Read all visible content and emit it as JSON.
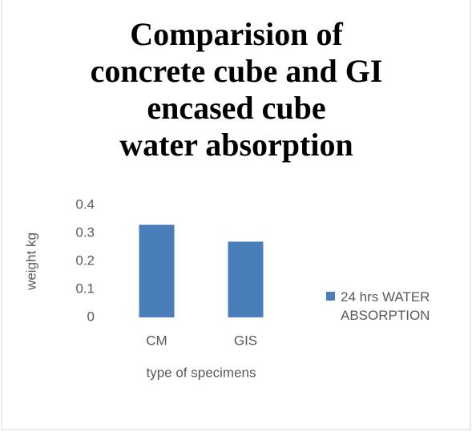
{
  "chart_data": {
    "type": "bar",
    "title": "Comparision of concrete cube and GI encased cube      water absorption",
    "x_label": "type of specimens",
    "y_label": "weight kg",
    "categories": [
      "CM",
      "GIS"
    ],
    "series": [
      {
        "name": "24 hrs WATER ABSORPTION",
        "color": "#4a7ebb",
        "values": [
          0.33,
          0.27
        ]
      }
    ],
    "ylim": [
      0,
      0.4
    ],
    "yticks": [
      0,
      0.1,
      0.2,
      0.3,
      0.4
    ],
    "grid": false,
    "legend": "right"
  }
}
